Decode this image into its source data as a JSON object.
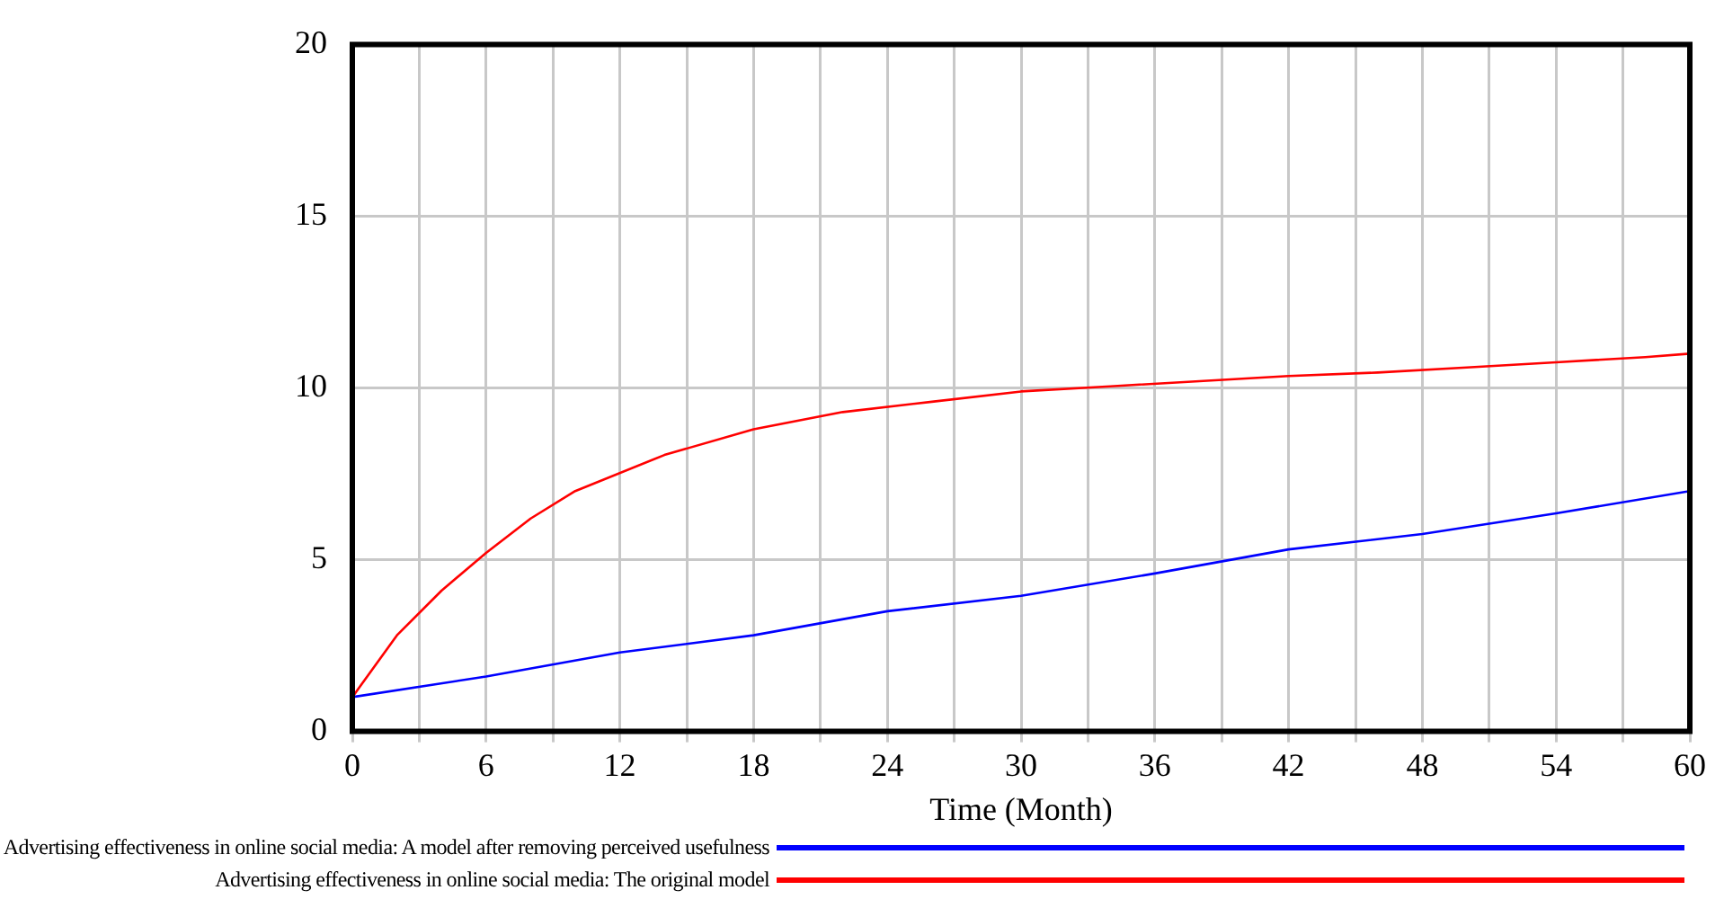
{
  "chart_data": {
    "type": "line",
    "xlabel": "Time (Month)",
    "xlim": [
      0,
      60
    ],
    "ylim": [
      0,
      20
    ],
    "yticks": [
      0,
      5,
      10,
      15,
      20
    ],
    "xticks": [
      0,
      {
        "value": 3,
        "label": null
      },
      6,
      {
        "value": 9,
        "label": null
      },
      12,
      {
        "value": 15,
        "label": null
      },
      18,
      {
        "value": 21,
        "label": null
      },
      24,
      {
        "value": 27,
        "label": null
      },
      30,
      {
        "value": 33,
        "label": null
      },
      36,
      {
        "value": 39,
        "label": null
      },
      42,
      {
        "value": 45,
        "label": null
      },
      48,
      {
        "value": 51,
        "label": null
      },
      54,
      {
        "value": 57,
        "label": null
      },
      60
    ],
    "grid": true,
    "legend": "bottom",
    "marker": "none",
    "line_style": "solid",
    "series": [
      {
        "name": "Advertising effectiveness in online social media: A model after removing perceived usefulness",
        "color": "#0000ff",
        "x": [
          0,
          6,
          12,
          18,
          24,
          30,
          36,
          42,
          48,
          54,
          60
        ],
        "values": [
          1.0,
          1.6,
          2.3,
          2.8,
          3.5,
          3.95,
          4.6,
          5.3,
          5.75,
          6.35,
          7.0
        ]
      },
      {
        "name": "Advertising effectiveness in online social media: The original model",
        "color": "#ff0000",
        "x": [
          0,
          2,
          4,
          6,
          8,
          10,
          14,
          18,
          22,
          26,
          30,
          34,
          38,
          42,
          46,
          50,
          54,
          58,
          60
        ],
        "values": [
          1.0,
          2.8,
          4.1,
          5.2,
          6.2,
          7.0,
          8.05,
          8.8,
          9.3,
          9.6,
          9.9,
          10.05,
          10.2,
          10.35,
          10.45,
          10.6,
          10.75,
          10.9,
          11.0
        ]
      }
    ]
  }
}
